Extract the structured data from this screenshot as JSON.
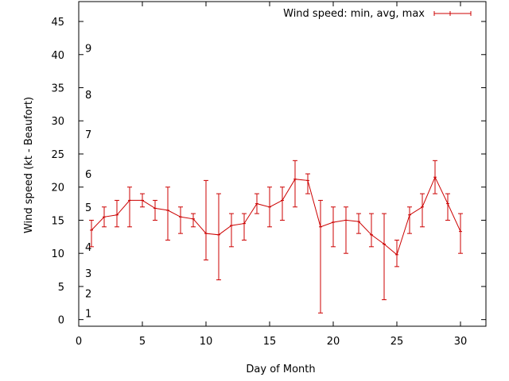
{
  "chart_data": {
    "type": "line",
    "title": "",
    "xlabel": "Day of Month",
    "ylabel": "Wind speed (kt - Beaufort)",
    "xlim": [
      0,
      32
    ],
    "ylim": [
      -1,
      48
    ],
    "xticks": [
      0,
      5,
      10,
      15,
      20,
      25,
      30
    ],
    "yticks": [
      0,
      5,
      10,
      15,
      20,
      25,
      30,
      35,
      40,
      45
    ],
    "grid": false,
    "legend_position": "top-right",
    "beaufort_labels": [
      {
        "label": "1",
        "y": 1
      },
      {
        "label": "2",
        "y": 4
      },
      {
        "label": "3",
        "y": 7
      },
      {
        "label": "4",
        "y": 11
      },
      {
        "label": "5",
        "y": 17
      },
      {
        "label": "6",
        "y": 22
      },
      {
        "label": "7",
        "y": 28
      },
      {
        "label": "8",
        "y": 34
      },
      {
        "label": "9",
        "y": 41
      }
    ],
    "series": [
      {
        "name": "Wind speed: min, avg, max",
        "color": "#cc0000",
        "x": [
          1,
          2,
          3,
          4,
          5,
          6,
          7,
          8,
          9,
          10,
          11,
          12,
          13,
          14,
          15,
          16,
          17,
          18,
          19,
          20,
          21,
          22,
          23,
          24,
          25,
          26,
          27,
          28,
          29,
          30
        ],
        "avg": [
          13.5,
          15.5,
          15.8,
          18,
          18,
          16.8,
          16.5,
          15.5,
          15.2,
          13,
          12.8,
          14.2,
          14.5,
          17.5,
          17,
          18,
          21.2,
          21,
          14,
          14.7,
          15,
          14.8,
          12.8,
          11.4,
          9.8,
          15.8,
          17,
          21.5,
          17.5,
          13.3
        ],
        "min": [
          11,
          14,
          14,
          14,
          17,
          15,
          12,
          13,
          14,
          9,
          6,
          11,
          12,
          16,
          14,
          15,
          17,
          19,
          1,
          11,
          10,
          13,
          11,
          3,
          8,
          13,
          14,
          19,
          15,
          10
        ],
        "max": [
          15,
          17,
          18,
          20,
          19,
          18,
          20,
          17,
          16,
          21,
          19,
          16,
          16,
          19,
          20,
          20,
          24,
          22,
          18,
          17,
          17,
          16,
          16,
          16,
          12,
          17,
          19,
          24,
          19,
          16
        ]
      }
    ]
  }
}
